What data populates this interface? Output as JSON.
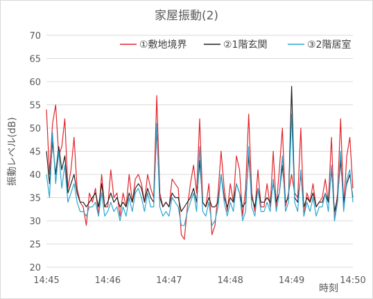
{
  "chart_data": {
    "type": "line",
    "title": "家屋振動(2)",
    "xlabel": "時刻",
    "ylabel": "振動レベル(dB)",
    "ylim": [
      20,
      70
    ],
    "yticks": [
      "20",
      "25",
      "30",
      "35",
      "40",
      "45",
      "50",
      "55",
      "60",
      "65",
      "70"
    ],
    "xlim_minutes": [
      0,
      5
    ],
    "xticks": [
      "14:45",
      "14:46",
      "14:47",
      "14:48",
      "14:49",
      "14:50"
    ],
    "grid": true,
    "legend_position": "top-right",
    "series": [
      {
        "name": "①敷地境界",
        "color": "#e0242a",
        "x": [
          0.0,
          0.05,
          0.1,
          0.15,
          0.2,
          0.25,
          0.3,
          0.35,
          0.4,
          0.45,
          0.5,
          0.55,
          0.6,
          0.65,
          0.7,
          0.75,
          0.8,
          0.85,
          0.9,
          0.95,
          1.0,
          1.05,
          1.1,
          1.15,
          1.2,
          1.25,
          1.3,
          1.35,
          1.4,
          1.45,
          1.5,
          1.55,
          1.6,
          1.65,
          1.7,
          1.75,
          1.8,
          1.85,
          1.9,
          1.95,
          2.0,
          2.05,
          2.1,
          2.15,
          2.2,
          2.25,
          2.3,
          2.35,
          2.4,
          2.45,
          2.5,
          2.55,
          2.6,
          2.65,
          2.7,
          2.75,
          2.8,
          2.85,
          2.9,
          2.95,
          3.0,
          3.05,
          3.1,
          3.15,
          3.2,
          3.25,
          3.3,
          3.35,
          3.4,
          3.45,
          3.5,
          3.55,
          3.6,
          3.65,
          3.7,
          3.75,
          3.8,
          3.85,
          3.9,
          3.95,
          4.0,
          4.05,
          4.1,
          4.15,
          4.2,
          4.25,
          4.3,
          4.35,
          4.4,
          4.45,
          4.5,
          4.55,
          4.6,
          4.65,
          4.7,
          4.75,
          4.8,
          4.85,
          4.9,
          4.95,
          5.0
        ],
        "y": [
          54,
          40,
          51,
          55,
          44,
          46,
          52,
          37,
          41,
          48,
          37,
          34,
          33,
          29,
          36,
          34,
          37,
          31,
          40,
          33,
          33,
          41,
          35,
          36,
          31,
          36,
          33,
          40,
          34,
          39,
          40,
          38,
          34,
          40,
          37,
          35,
          57,
          36,
          33,
          34,
          33,
          39,
          38,
          37,
          27,
          26,
          33,
          38,
          42,
          36,
          52,
          34,
          33,
          38,
          27,
          29,
          36,
          45,
          37,
          32,
          38,
          34,
          44,
          41,
          31,
          37,
          53,
          36,
          32,
          41,
          33,
          33,
          38,
          33,
          45,
          33,
          41,
          50,
          33,
          36,
          40,
          36,
          35,
          50,
          31,
          36,
          34,
          38,
          33,
          34,
          35,
          39,
          34,
          48,
          30,
          36,
          52,
          33,
          44,
          48,
          37
        ],
        "style": "solid"
      },
      {
        "name": "②1階玄関",
        "color": "#1f1f1f",
        "x": [
          0.0,
          0.05,
          0.1,
          0.15,
          0.2,
          0.25,
          0.3,
          0.35,
          0.4,
          0.45,
          0.5,
          0.55,
          0.6,
          0.65,
          0.7,
          0.75,
          0.8,
          0.85,
          0.9,
          0.95,
          1.0,
          1.05,
          1.1,
          1.15,
          1.2,
          1.25,
          1.3,
          1.35,
          1.4,
          1.45,
          1.5,
          1.55,
          1.6,
          1.65,
          1.7,
          1.75,
          1.8,
          1.85,
          1.9,
          1.95,
          2.0,
          2.05,
          2.1,
          2.15,
          2.2,
          2.25,
          2.3,
          2.35,
          2.4,
          2.45,
          2.5,
          2.55,
          2.6,
          2.65,
          2.7,
          2.75,
          2.8,
          2.85,
          2.9,
          2.95,
          3.0,
          3.05,
          3.1,
          3.15,
          3.2,
          3.25,
          3.3,
          3.35,
          3.4,
          3.45,
          3.5,
          3.55,
          3.6,
          3.65,
          3.7,
          3.75,
          3.8,
          3.85,
          3.9,
          3.95,
          4.0,
          4.05,
          4.1,
          4.15,
          4.2,
          4.25,
          4.3,
          4.35,
          4.4,
          4.45,
          4.5,
          4.55,
          4.6,
          4.65,
          4.7,
          4.75,
          4.8,
          4.85,
          4.9,
          4.95,
          5.0
        ],
        "y": [
          45,
          38,
          47,
          40,
          46,
          41,
          44,
          36,
          38,
          40,
          36,
          34,
          34,
          33,
          34,
          35,
          36,
          33,
          38,
          33,
          34,
          36,
          34,
          35,
          33,
          34,
          33,
          36,
          34,
          37,
          38,
          37,
          34,
          37,
          35,
          34,
          50,
          35,
          33,
          34,
          33,
          36,
          35,
          35,
          32,
          33,
          34,
          35,
          37,
          34,
          43,
          34,
          33,
          35,
          33,
          33,
          34,
          40,
          35,
          33,
          35,
          34,
          38,
          36,
          33,
          34,
          44,
          35,
          33,
          37,
          34,
          34,
          35,
          34,
          38,
          34,
          36,
          42,
          34,
          35,
          59,
          35,
          34,
          40,
          33,
          35,
          34,
          36,
          33,
          34,
          34,
          36,
          34,
          41,
          32,
          35,
          43,
          34,
          38,
          40,
          35
        ],
        "style": "solid"
      },
      {
        "name": "③2階居室",
        "color": "#2aa5cf",
        "x": [
          0.0,
          0.05,
          0.1,
          0.15,
          0.2,
          0.25,
          0.3,
          0.35,
          0.4,
          0.45,
          0.5,
          0.55,
          0.6,
          0.65,
          0.7,
          0.75,
          0.8,
          0.85,
          0.9,
          0.95,
          1.0,
          1.05,
          1.1,
          1.15,
          1.2,
          1.25,
          1.3,
          1.35,
          1.4,
          1.45,
          1.5,
          1.55,
          1.6,
          1.65,
          1.7,
          1.75,
          1.8,
          1.85,
          1.9,
          1.95,
          2.0,
          2.05,
          2.1,
          2.15,
          2.2,
          2.25,
          2.3,
          2.35,
          2.4,
          2.45,
          2.5,
          2.55,
          2.6,
          2.65,
          2.7,
          2.75,
          2.8,
          2.85,
          2.9,
          2.95,
          3.0,
          3.05,
          3.1,
          3.15,
          3.2,
          3.25,
          3.3,
          3.35,
          3.4,
          3.45,
          3.5,
          3.55,
          3.6,
          3.65,
          3.7,
          3.75,
          3.8,
          3.85,
          3.9,
          3.95,
          4.0,
          4.05,
          4.1,
          4.15,
          4.2,
          4.25,
          4.3,
          4.35,
          4.4,
          4.45,
          4.5,
          4.55,
          4.6,
          4.65,
          4.7,
          4.75,
          4.8,
          4.85,
          4.9,
          4.95,
          5.0
        ],
        "y": [
          40,
          35,
          49,
          38,
          45,
          37,
          42,
          34,
          36,
          38,
          34,
          32,
          32,
          31,
          33,
          33,
          34,
          31,
          36,
          31,
          32,
          34,
          32,
          33,
          30,
          33,
          31,
          35,
          32,
          36,
          37,
          35,
          32,
          36,
          33,
          33,
          51,
          33,
          31,
          32,
          31,
          35,
          34,
          33,
          29,
          29,
          32,
          34,
          36,
          32,
          46,
          32,
          31,
          34,
          29,
          30,
          33,
          40,
          34,
          31,
          34,
          32,
          38,
          36,
          30,
          32,
          46,
          33,
          31,
          37,
          32,
          32,
          34,
          32,
          39,
          32,
          36,
          44,
          32,
          34,
          53,
          34,
          32,
          41,
          31,
          34,
          32,
          35,
          31,
          33,
          33,
          36,
          32,
          42,
          30,
          34,
          45,
          32,
          39,
          41,
          34
        ],
        "style": "solid"
      }
    ]
  }
}
